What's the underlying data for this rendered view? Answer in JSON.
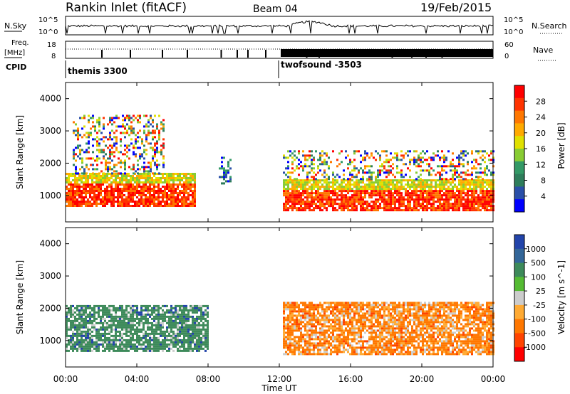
{
  "header": {
    "station": "Rankin Inlet (fitACF)",
    "beam": "Beam 04",
    "date": "19/Feb/2015"
  },
  "noise_panel": {
    "left_label": "N.Sky",
    "right_label": "N.Search",
    "left_ticks": [
      "10^5",
      "10^0"
    ],
    "right_ticks": [
      "10^5",
      "10^0"
    ]
  },
  "freq_panel": {
    "left_label_1": "Freq.",
    "left_label_2": "[MHz]",
    "right_label": "Nave",
    "left_ticks": [
      "18",
      "8"
    ],
    "right_ticks": [
      "60",
      "0"
    ]
  },
  "cpid": {
    "label": "CPID",
    "programs": [
      {
        "name": "themis 3300",
        "start_hour": 0,
        "end_hour": 12
      },
      {
        "name": "twofsound -3503",
        "start_hour": 12,
        "end_hour": 24
      }
    ]
  },
  "x_axis": {
    "title": "Time UT",
    "ticks": [
      "00:00",
      "04:00",
      "08:00",
      "12:00",
      "16:00",
      "20:00",
      "00:00"
    ],
    "tick_hours": [
      0,
      4,
      8,
      12,
      16,
      20,
      24
    ]
  },
  "y_axis": {
    "title": "Slant Range [km]",
    "ticks": [
      "1000",
      "2000",
      "3000",
      "4000"
    ],
    "tick_values": [
      1000,
      2000,
      3000,
      4000
    ],
    "range": [
      180,
      4500
    ]
  },
  "power_scale": {
    "title": "Power [dB]",
    "labels": [
      "28",
      "24",
      "20",
      "16",
      "12",
      "8",
      "4"
    ],
    "colors": [
      "#ff0000",
      "#ff3300",
      "#ff7700",
      "#ffaa00",
      "#e0e000",
      "#88cc33",
      "#339966",
      "#2e7d5b",
      "#2a4fa8",
      "#0000ff"
    ]
  },
  "velocity_scale": {
    "title": "Velocity [m s^-1]",
    "labels": [
      "1000",
      "500",
      "100",
      "25",
      "-25",
      "-100",
      "-500",
      "-1000"
    ],
    "colors": [
      "#2244aa",
      "#336699",
      "#3d8a5a",
      "#55bb33",
      "#cccccc",
      "#ffaa33",
      "#ff7700",
      "#ff4400",
      "#ff0000"
    ]
  },
  "chart_data": {
    "type": "heatmap",
    "title": "Rankin Inlet (fitACF) Beam 04 19/Feb/2015",
    "xlabel": "Time UT",
    "ylabel": "Slant Range [km]",
    "xlim_hours": [
      0,
      24
    ],
    "ylim_km": [
      180,
      4500
    ],
    "power_regions": [
      {
        "t0": 0.0,
        "t1": 7.3,
        "r0": 700,
        "r1": 1700,
        "level": "high"
      },
      {
        "t0": 0.4,
        "t1": 5.5,
        "r0": 1700,
        "r1": 3500,
        "level": "mixed"
      },
      {
        "t0": 8.6,
        "t1": 9.3,
        "r0": 1400,
        "r1": 2200,
        "level": "low"
      },
      {
        "t0": 12.2,
        "t1": 24.0,
        "r0": 550,
        "r1": 1500,
        "level": "high"
      },
      {
        "t0": 12.2,
        "t1": 24.0,
        "r0": 1500,
        "r1": 2400,
        "level": "mixed"
      }
    ],
    "velocity_regions": [
      {
        "t0": 0.0,
        "t1": 8.0,
        "r0": 700,
        "r1": 2100,
        "dominant": "-25 to 100 (green)"
      },
      {
        "t0": 12.2,
        "t1": 24.0,
        "r0": 550,
        "r1": 2200,
        "dominant": "-100 to -500 (orange)"
      }
    ]
  }
}
